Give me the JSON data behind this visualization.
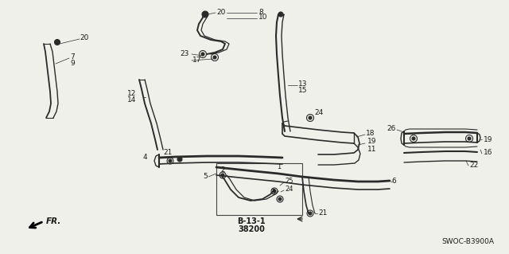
{
  "bg_color": "#f0f0eb",
  "line_color": "#2a2a2a",
  "text_color": "#1a1a1a",
  "fig_width": 6.4,
  "fig_height": 3.19,
  "dpi": 100,
  "bottom_label1": "B-13-1",
  "bottom_label2": "38200",
  "corner_label": "SWOC-B3900A",
  "fr_label": "FR."
}
